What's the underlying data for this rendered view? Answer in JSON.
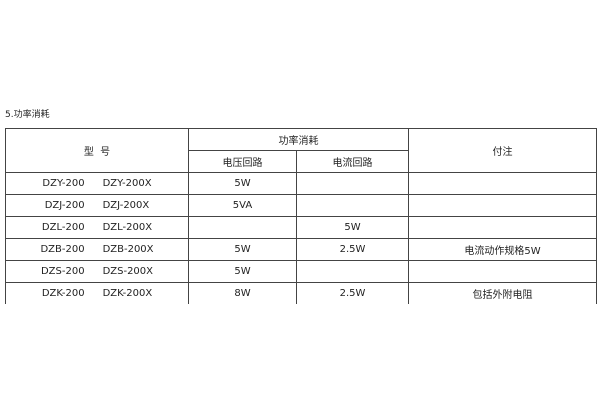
{
  "section_title": "5.功率消耗",
  "table": {
    "header": {
      "model": "型  号",
      "power": "功率消耗",
      "voltage_circuit": "电压回路",
      "current_circuit": "电流回路",
      "note": "付注"
    },
    "rows": [
      {
        "model_a": "DZY-200",
        "model_b": "DZY-200X",
        "voltage": "5W",
        "current": "",
        "note": ""
      },
      {
        "model_a": "DZJ-200",
        "model_b": "DZJ-200X",
        "voltage": "5VA",
        "current": "",
        "note": ""
      },
      {
        "model_a": "DZL-200",
        "model_b": "DZL-200X",
        "voltage": "",
        "current": "5W",
        "note": ""
      },
      {
        "model_a": "DZB-200",
        "model_b": "DZB-200X",
        "voltage": "5W",
        "current": "2.5W",
        "note": "电流动作规格5W"
      },
      {
        "model_a": "DZS-200",
        "model_b": "DZS-200X",
        "voltage": "5W",
        "current": "",
        "note": ""
      },
      {
        "model_a": "DZK-200",
        "model_b": "DZK-200X",
        "voltage": "8W",
        "current": "2.5W",
        "note": "包括外附电阻"
      }
    ]
  }
}
